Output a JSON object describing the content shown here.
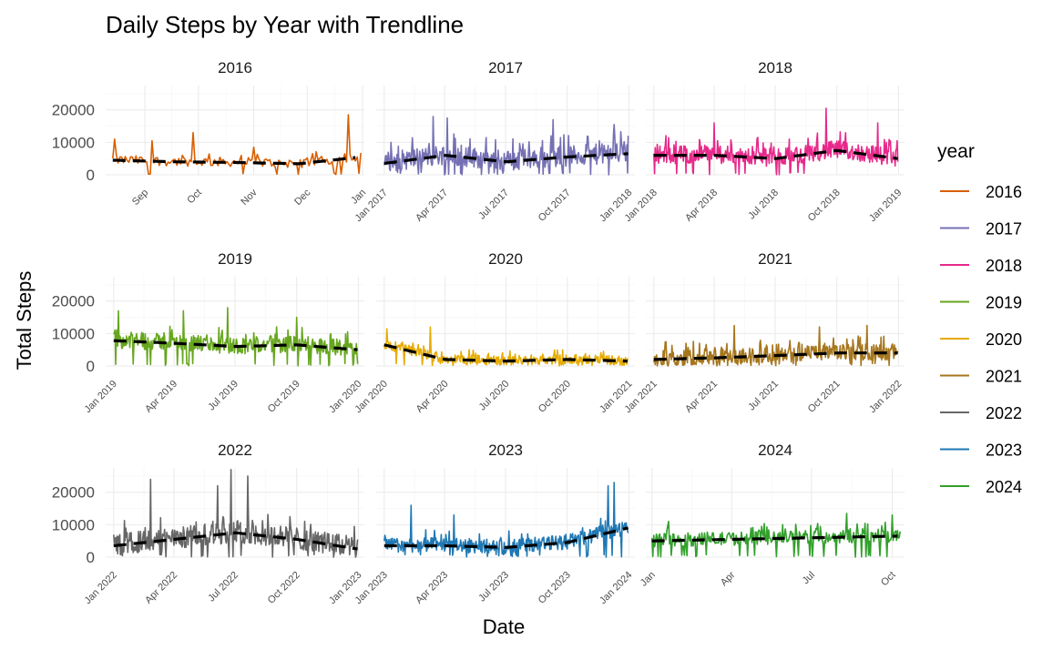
{
  "chart_data": {
    "type": "line",
    "title": "Daily Steps by Year with Trendline",
    "xlabel": "Date",
    "ylabel": "Total Steps",
    "ylim": [
      0,
      27500
    ],
    "y_ticks": [
      0,
      10000,
      20000
    ],
    "y_tick_labels": [
      "0",
      "10000",
      "20000"
    ],
    "grid": true,
    "legend": {
      "title": "year",
      "position": "right",
      "entries": [
        "2016",
        "2017",
        "2018",
        "2019",
        "2020",
        "2021",
        "2022",
        "2023",
        "2024"
      ]
    },
    "trendline": {
      "style": "dashed",
      "color": "#000000"
    },
    "panels": [
      {
        "name": "2016",
        "color": "#D95F02",
        "xlim": [
          "2016-08-10",
          "2017-01-02"
        ],
        "x_ticks": [
          "2016-09-01",
          "2016-10-01",
          "2016-11-01",
          "2016-12-01",
          "2017-01-01"
        ],
        "x_tick_labels": [
          "Sep",
          "Oct",
          "Nov",
          "Dec",
          "Jan"
        ],
        "range": [
          "2016-08-14",
          "2016-12-31"
        ],
        "trend": [
          4500,
          4000,
          3800,
          3400,
          5500
        ],
        "noise": 1800,
        "spikes": [
          [
            "2016-08-15",
            11000
          ],
          [
            "2016-09-05",
            10500
          ],
          [
            "2016-09-28",
            13000
          ],
          [
            "2016-11-01",
            8500
          ],
          [
            "2016-12-24",
            18500
          ]
        ]
      },
      {
        "name": "2017",
        "color": "#7570B3",
        "xlim": [
          "2016-12-20",
          "2018-01-10"
        ],
        "x_ticks": [
          "2017-01-01",
          "2017-04-01",
          "2017-07-01",
          "2017-10-01",
          "2018-01-01"
        ],
        "x_tick_labels": [
          "Jan 2017",
          "Apr 2017",
          "Jul 2017",
          "Oct 2017",
          "Jan 2018"
        ],
        "range": [
          "2017-01-01",
          "2017-12-31"
        ],
        "trend": [
          3500,
          6000,
          4000,
          5500,
          6500
        ],
        "noise": 4000,
        "spikes": [
          [
            "2017-03-15",
            18000
          ],
          [
            "2017-04-05",
            17500
          ],
          [
            "2017-09-10",
            17000
          ],
          [
            "2017-12-10",
            15500
          ]
        ]
      },
      {
        "name": "2018",
        "color": "#E7298A",
        "xlim": [
          "2017-12-20",
          "2019-01-10"
        ],
        "x_ticks": [
          "2018-01-01",
          "2018-04-01",
          "2018-07-01",
          "2018-10-01",
          "2019-01-01"
        ],
        "x_tick_labels": [
          "Jan 2018",
          "Apr 2018",
          "Jul 2018",
          "Oct 2018",
          "Jan 2019"
        ],
        "range": [
          "2018-01-01",
          "2018-12-31"
        ],
        "trend": [
          6000,
          6000,
          5000,
          7500,
          5000
        ],
        "noise": 3500,
        "spikes": [
          [
            "2018-04-01",
            16000
          ],
          [
            "2018-09-15",
            20500
          ],
          [
            "2018-12-01",
            16000
          ]
        ]
      },
      {
        "name": "2019",
        "color": "#66A61E",
        "xlim": [
          "2018-12-20",
          "2020-01-10"
        ],
        "x_ticks": [
          "2019-01-01",
          "2019-04-01",
          "2019-07-01",
          "2019-10-01",
          "2020-01-01"
        ],
        "x_tick_labels": [
          "Jan 2019",
          "Apr 2019",
          "Jul 2019",
          "Oct 2019",
          "Jan 2020"
        ],
        "range": [
          "2019-01-01",
          "2019-12-31"
        ],
        "trend": [
          7800,
          7000,
          6000,
          6500,
          5000
        ],
        "noise": 3200,
        "spikes": [
          [
            "2019-01-08",
            17000
          ],
          [
            "2019-04-15",
            17000
          ],
          [
            "2019-06-20",
            18000
          ],
          [
            "2019-10-01",
            15000
          ]
        ]
      },
      {
        "name": "2020",
        "color": "#E6AB02",
        "xlim": [
          "2019-12-20",
          "2021-01-10"
        ],
        "x_ticks": [
          "2020-01-01",
          "2020-04-01",
          "2020-07-01",
          "2020-10-01",
          "2021-01-01"
        ],
        "x_tick_labels": [
          "Jan 2020",
          "Apr 2020",
          "Jul 2020",
          "Oct 2020",
          "Jan 2021"
        ],
        "range": [
          "2020-01-01",
          "2020-12-31"
        ],
        "trend": [
          6500,
          2000,
          1500,
          2000,
          1500
        ],
        "noise": 1800,
        "spikes": [
          [
            "2020-01-05",
            11500
          ],
          [
            "2020-03-10",
            12000
          ]
        ]
      },
      {
        "name": "2021",
        "color": "#A6761D",
        "xlim": [
          "2020-12-20",
          "2022-01-10"
        ],
        "x_ticks": [
          "2021-01-01",
          "2021-04-01",
          "2021-07-01",
          "2021-10-01",
          "2022-01-01"
        ],
        "x_tick_labels": [
          "Jan 2021",
          "Apr 2021",
          "Jul 2021",
          "Oct 2021",
          "Jan 2022"
        ],
        "range": [
          "2021-01-01",
          "2021-12-31"
        ],
        "trend": [
          2000,
          2500,
          3200,
          4000,
          4000
        ],
        "noise": 3000,
        "spikes": [
          [
            "2021-05-01",
            12500
          ],
          [
            "2021-09-05",
            12000
          ],
          [
            "2021-11-15",
            12500
          ]
        ]
      },
      {
        "name": "2022",
        "color": "#666666",
        "xlim": [
          "2021-12-20",
          "2023-01-10"
        ],
        "x_ticks": [
          "2022-01-01",
          "2022-04-01",
          "2022-07-01",
          "2022-10-01",
          "2023-01-01"
        ],
        "x_tick_labels": [
          "Jan 2022",
          "Apr 2022",
          "Jul 2022",
          "Oct 2022",
          "Jan 2023"
        ],
        "range": [
          "2022-01-01",
          "2022-12-31"
        ],
        "trend": [
          3500,
          5500,
          7500,
          5500,
          2500
        ],
        "noise": 4200,
        "spikes": [
          [
            "2022-02-25",
            24000
          ],
          [
            "2022-06-05",
            22000
          ],
          [
            "2022-06-25",
            27000
          ],
          [
            "2022-07-20",
            25000
          ]
        ]
      },
      {
        "name": "2023",
        "color": "#1F78B4",
        "xlim": [
          "2022-12-20",
          "2024-01-10"
        ],
        "x_ticks": [
          "2023-01-01",
          "2023-04-01",
          "2023-07-01",
          "2023-10-01",
          "2024-01-01"
        ],
        "x_tick_labels": [
          "Jan 2023",
          "Apr 2023",
          "Jul 2023",
          "Oct 2023",
          "Jan 2024"
        ],
        "range": [
          "2023-01-01",
          "2023-12-31"
        ],
        "trend": [
          3500,
          3500,
          3000,
          4500,
          9000
        ],
        "noise": 2800,
        "spikes": [
          [
            "2023-02-10",
            16000
          ],
          [
            "2023-04-15",
            13000
          ],
          [
            "2023-12-01",
            22000
          ],
          [
            "2023-12-10",
            23000
          ]
        ]
      },
      {
        "name": "2024",
        "color": "#33A02C",
        "xlim": [
          "2023-12-25",
          "2024-10-15"
        ],
        "x_ticks": [
          "2024-01-01",
          "2024-04-01",
          "2024-07-01",
          "2024-10-01"
        ],
        "x_tick_labels": [
          "Jan",
          "Apr",
          "Jul",
          "Oct"
        ],
        "range": [
          "2024-01-01",
          "2024-10-10"
        ],
        "trend": [
          5000,
          5500,
          6000,
          6500
        ],
        "noise": 2600,
        "spikes": [
          [
            "2024-01-20",
            11000
          ],
          [
            "2024-08-10",
            13500
          ],
          [
            "2024-10-01",
            13000
          ]
        ]
      }
    ]
  }
}
